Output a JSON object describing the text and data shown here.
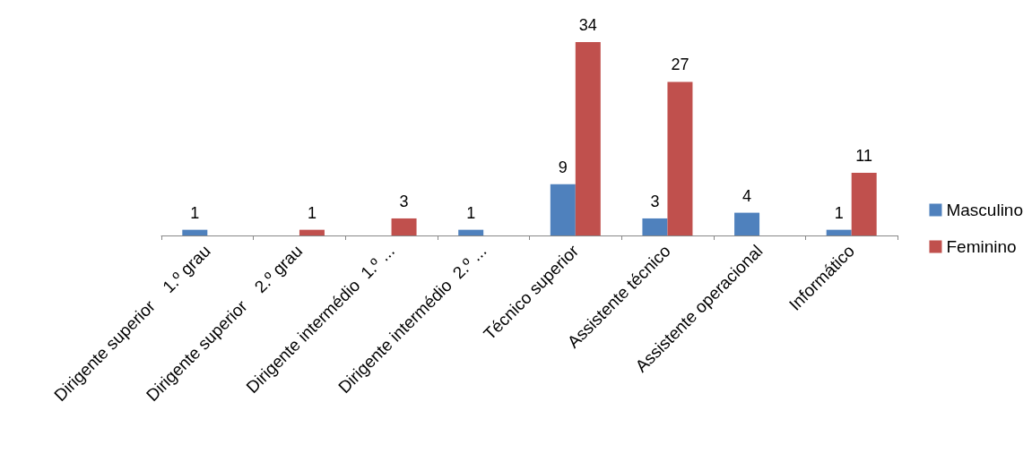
{
  "chart_data": {
    "type": "bar",
    "categories": [
      "Dirigente superior    1.º grau",
      "Dirigente superior    2.º grau",
      "Dirigente intermédio  1.º ...",
      "Dirigente intermédio  2.º ...",
      "Técnico superior",
      "Assistente técnico",
      "Assistente operacional",
      "Informático"
    ],
    "series": [
      {
        "name": "Masculino",
        "color": "#4f81bd",
        "values": [
          1,
          null,
          null,
          1,
          9,
          3,
          4,
          1
        ]
      },
      {
        "name": "Feminino",
        "color": "#c0504d",
        "values": [
          null,
          1,
          3,
          null,
          34,
          27,
          null,
          11
        ]
      }
    ],
    "data_labels": true,
    "legend": "right",
    "grid": false
  }
}
